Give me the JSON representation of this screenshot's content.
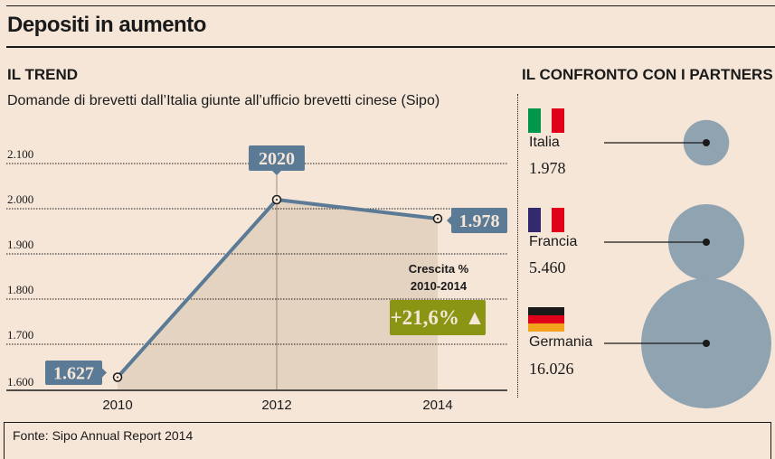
{
  "title": "Depositi in aumento",
  "trend": {
    "heading": "IL TREND",
    "subtitle": "Domande di brevetti dall’Italia giunte all’ufficio brevetti cinese (Sipo)",
    "growth_label_line1": "Crescita %",
    "growth_label_line2": "2010-2014",
    "growth_value": "+21,6% ▲",
    "growth_color": "#8a9514"
  },
  "chart_data": [
    {
      "type": "line",
      "title": "Domande di brevetti dall’Italia giunte all’ufficio brevetti cinese (Sipo)",
      "xlabel": "",
      "ylabel": "",
      "x": [
        "2010",
        "2012",
        "2014"
      ],
      "values": [
        1627,
        2020,
        1978
      ],
      "data_labels": [
        "1.627",
        "2020",
        "1.978"
      ],
      "ylim": [
        1600,
        2100
      ],
      "yticks": [
        1600,
        1700,
        1800,
        1900,
        2000,
        2100
      ],
      "ytick_labels": [
        "1.600",
        "1.700",
        "1.800",
        "1.900",
        "2.000",
        "2.100"
      ],
      "grid": true,
      "line_color": "#5a7a96",
      "area_color": "#e4d3c0"
    },
    {
      "type": "bubble",
      "title": "IL CONFRONTO CON I PARTNERS",
      "categories": [
        "Italia",
        "Francia",
        "Germania"
      ],
      "values": [
        1978,
        5460,
        16026
      ],
      "value_labels": [
        "1.978",
        "5.460",
        "16.026"
      ],
      "bubble_color": "#8fa3b1"
    }
  ],
  "partners": {
    "heading": "IL CONFRONTO CON I PARTNERS",
    "items": [
      {
        "name": "Italia",
        "value": "1.978",
        "flag": "italy-flag"
      },
      {
        "name": "Francia",
        "value": "5.460",
        "flag": "france-flag"
      },
      {
        "name": "Germania",
        "value": "16.026",
        "flag": "germany-flag"
      }
    ]
  },
  "footer": {
    "source": "Fonte: Sipo Annual Report 2014"
  }
}
